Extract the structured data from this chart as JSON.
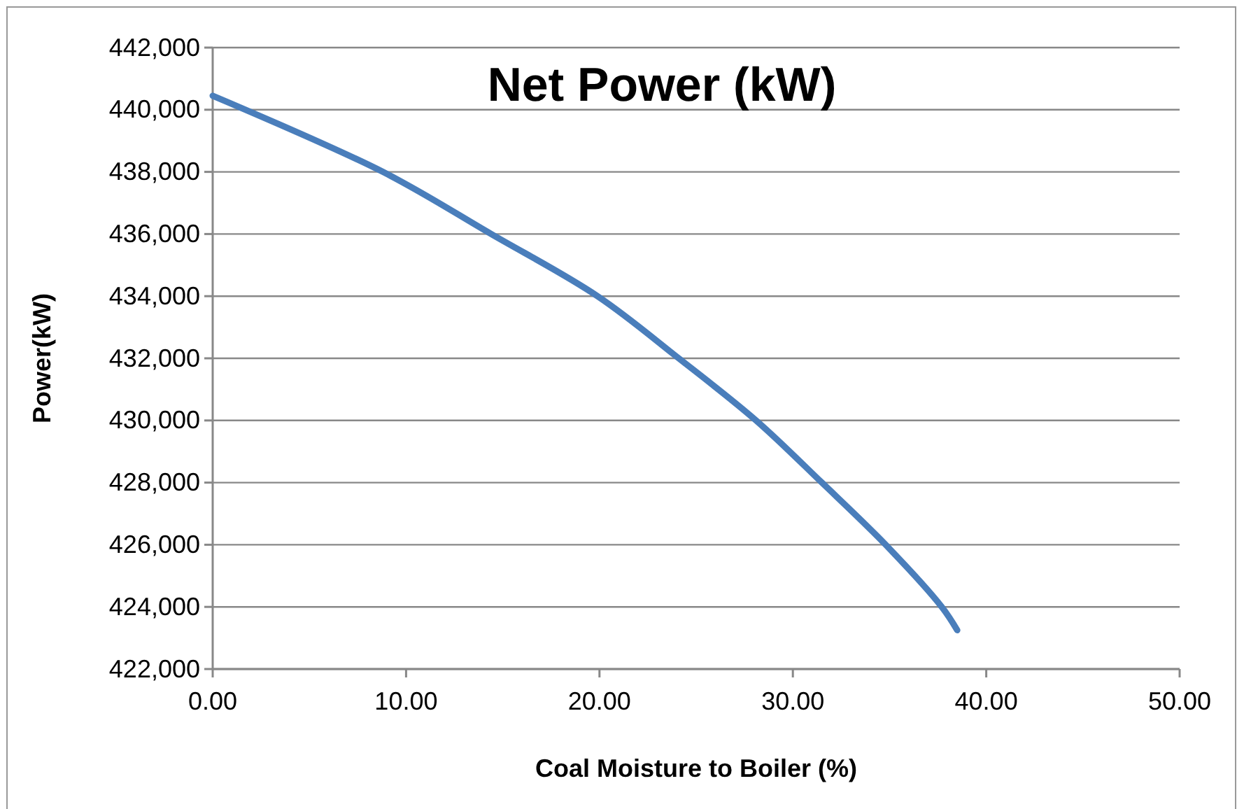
{
  "chart_data": {
    "type": "line",
    "title": "Net Power (kW)",
    "xlabel": "Coal Moisture to Boiler (%)",
    "ylabel": "Power(kW)",
    "x": [
      0,
      8.8,
      14.4,
      19.9,
      24.1,
      28.1,
      31.5,
      34.8,
      37.7,
      38.5
    ],
    "series": [
      {
        "color": "#4a7ebb",
        "values": [
          440450,
          438000,
          436000,
          434000,
          432000,
          430000,
          428000,
          426000,
          424000,
          423250
        ]
      }
    ],
    "xlim": [
      0,
      50
    ],
    "xticks": [
      {
        "value": 0,
        "label": "0.00"
      },
      {
        "value": 10,
        "label": "10.00"
      },
      {
        "value": 20,
        "label": "20.00"
      },
      {
        "value": 30,
        "label": "30.00"
      },
      {
        "value": 40,
        "label": "40.00"
      },
      {
        "value": 50,
        "label": "50.00"
      }
    ],
    "ylim": [
      422000,
      442000
    ],
    "yticks": [
      {
        "value": 422000,
        "label": "422,000"
      },
      {
        "value": 424000,
        "label": "424,000"
      },
      {
        "value": 426000,
        "label": "426,000"
      },
      {
        "value": 428000,
        "label": "428,000"
      },
      {
        "value": 430000,
        "label": "430,000"
      },
      {
        "value": 432000,
        "label": "432,000"
      },
      {
        "value": 434000,
        "label": "434,000"
      },
      {
        "value": 436000,
        "label": "436,000"
      },
      {
        "value": 438000,
        "label": "438,000"
      },
      {
        "value": 440000,
        "label": "440,000"
      },
      {
        "value": 442000,
        "label": "442,000"
      }
    ],
    "grid": "y",
    "marker": "none",
    "line_style": "solid"
  }
}
